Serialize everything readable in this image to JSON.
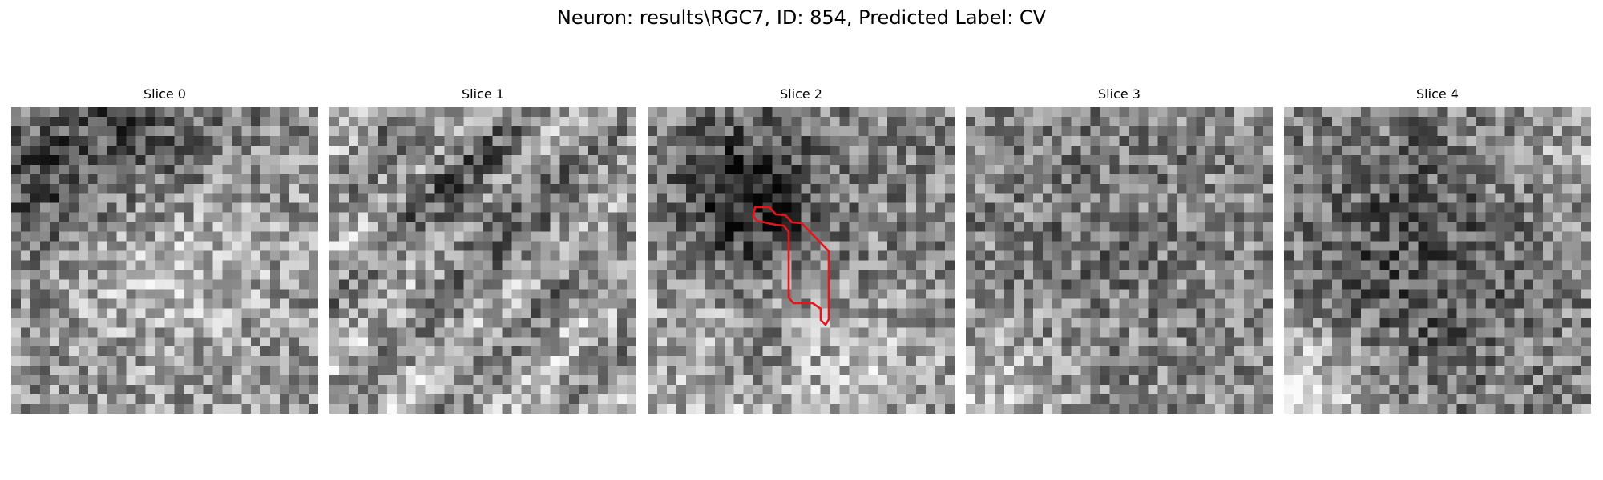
{
  "figure": {
    "suptitle": "Neuron: results\\RGC7, ID: 854, Predicted Label: CV"
  },
  "panels": [
    {
      "title": "Slice 0"
    },
    {
      "title": "Slice 1"
    },
    {
      "title": "Slice 2"
    },
    {
      "title": "Slice 3"
    },
    {
      "title": "Slice 4"
    }
  ],
  "overlay": {
    "color": "#e8141a"
  }
}
